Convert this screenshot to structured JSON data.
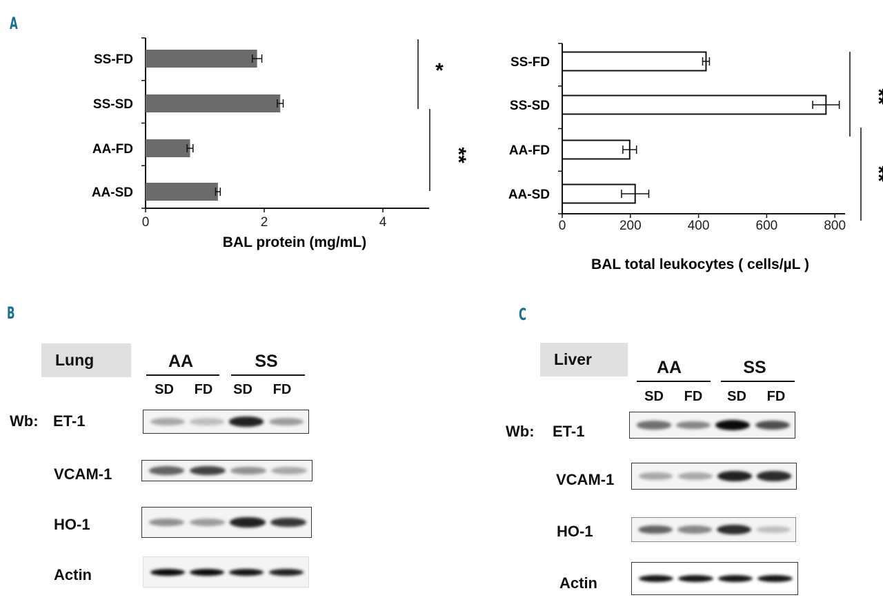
{
  "panels": {
    "a": "A",
    "b": "B",
    "c": "C"
  },
  "chart_data": [
    {
      "type": "bar",
      "orientation": "horizontal",
      "categories": [
        "SS-FD",
        "SS-SD",
        "AA-FD",
        "AA-SD"
      ],
      "values": [
        1.88,
        2.27,
        0.75,
        1.22
      ],
      "errors": [
        0.08,
        0.05,
        0.05,
        0.04
      ],
      "xlabel": "BAL  protein (mg/mL)",
      "xticks": [
        "0",
        "2",
        "4"
      ],
      "xlim": [
        0,
        4.9
      ],
      "bar_color": "#6b6b6b",
      "significance": [
        {
          "groups": [
            "SS-FD",
            "SS-SD"
          ],
          "label": "*"
        },
        {
          "groups": [
            "SS-SD",
            "AA-SD"
          ],
          "label": "**"
        }
      ]
    },
    {
      "type": "bar",
      "orientation": "horizontal",
      "categories": [
        "SS-FD",
        "SS-SD",
        "AA-FD",
        "AA-SD"
      ],
      "values": [
        422,
        774,
        198,
        214
      ],
      "errors": [
        10,
        39,
        20,
        40
      ],
      "xlabel": "BAL total leukocytes ( cells/µL )",
      "xticks": [
        "0",
        "200",
        "400",
        "600",
        "800"
      ],
      "xlim": [
        0,
        830
      ],
      "bar_color": "#ffffff",
      "significance": [
        {
          "groups": [
            "SS-FD",
            "AA-FD"
          ],
          "label": "**"
        },
        {
          "groups": [
            "AA-FD",
            "AA-SD"
          ],
          "label": "**"
        }
      ]
    }
  ],
  "blots": {
    "lung": {
      "tissue": "Lung",
      "groups": [
        "AA",
        "SS"
      ],
      "lanes": [
        "SD",
        "FD",
        "SD",
        "FD"
      ],
      "wb_prefix": "Wb:",
      "rows": [
        {
          "label": "ET-1",
          "intensity": [
            0.3,
            0.2,
            0.9,
            0.35
          ]
        },
        {
          "label": "VCAM-1",
          "intensity": [
            0.6,
            0.75,
            0.4,
            0.3
          ]
        },
        {
          "label": "HO-1",
          "intensity": [
            0.4,
            0.35,
            0.9,
            0.8
          ]
        },
        {
          "label": "Actin",
          "intensity": [
            1,
            1,
            0.95,
            0.9
          ]
        }
      ]
    },
    "liver": {
      "tissue": "Liver",
      "groups": [
        "AA",
        "SS"
      ],
      "lanes": [
        "SD",
        "FD",
        "SD",
        "FD"
      ],
      "wb_prefix": "Wb:",
      "rows": [
        {
          "label": "ET-1",
          "intensity": [
            0.55,
            0.45,
            1,
            0.7
          ]
        },
        {
          "label": "VCAM-1",
          "intensity": [
            0.3,
            0.3,
            0.9,
            0.85
          ]
        },
        {
          "label": "HO-1",
          "intensity": [
            0.6,
            0.45,
            0.85,
            0.2
          ]
        },
        {
          "label": "Actin",
          "intensity": [
            0.95,
            0.95,
            0.95,
            0.95
          ]
        }
      ]
    }
  }
}
